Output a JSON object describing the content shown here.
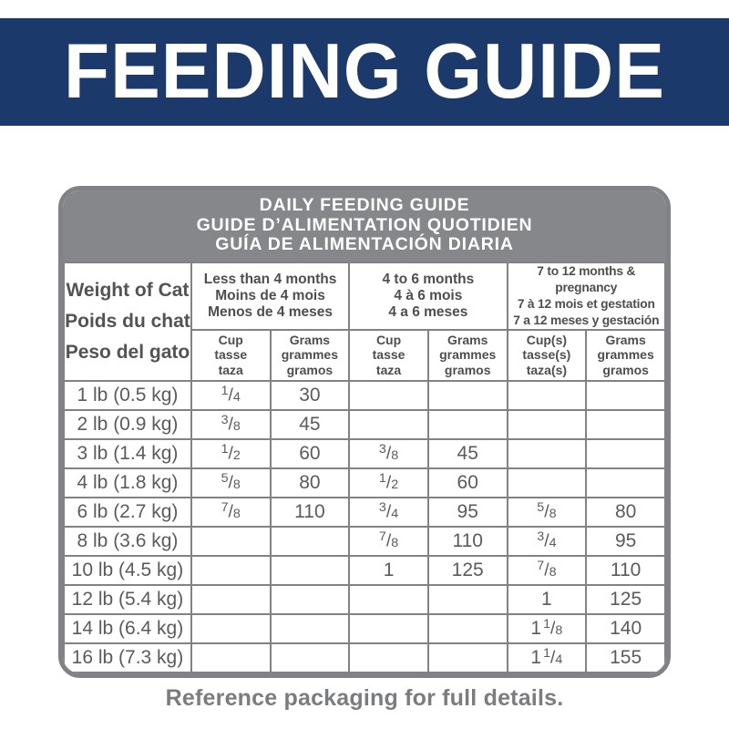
{
  "banner": {
    "title": "FEEDING GUIDE"
  },
  "table": {
    "title_lines": [
      "DAILY FEEDING GUIDE",
      "GUIDE D’ALIMENTATION QUOTIDIEN",
      "GUÍA DE ALIMENTACIÓN DIARIA"
    ],
    "weight_header_lines": [
      "Weight of Cat",
      "Poids du chat",
      "Peso del gato"
    ],
    "age_groups": [
      {
        "label_lines": [
          "Less than 4 months",
          "Moins de 4 mois",
          "Menos de 4 meses"
        ],
        "unit_headers": [
          [
            "Cup",
            "tasse",
            "taza"
          ],
          [
            "Grams",
            "grammes",
            "gramos"
          ]
        ]
      },
      {
        "label_lines": [
          "4 to 6 months",
          "4 à 6 mois",
          "4 a 6 meses"
        ],
        "unit_headers": [
          [
            "Cup",
            "tasse",
            "taza"
          ],
          [
            "Grams",
            "grammes",
            "gramos"
          ]
        ]
      },
      {
        "label_lines": [
          "7 to 12 months & pregnancy",
          "7 à 12 mois et gestation",
          "7 a 12 meses y gestación"
        ],
        "unit_headers": [
          [
            "Cup(s)",
            "tasse(s)",
            "taza(s)"
          ],
          [
            "Grams",
            "grammes",
            "gramos"
          ]
        ]
      }
    ],
    "rows": [
      {
        "weight": "1 lb (0.5 kg)",
        "values": [
          "1/4",
          "30",
          "",
          "",
          "",
          ""
        ]
      },
      {
        "weight": "2 lb (0.9 kg)",
        "values": [
          "3/8",
          "45",
          "",
          "",
          "",
          ""
        ]
      },
      {
        "weight": "3 lb (1.4 kg)",
        "values": [
          "1/2",
          "60",
          "3/8",
          "45",
          "",
          ""
        ]
      },
      {
        "weight": "4 lb (1.8 kg)",
        "values": [
          "5/8",
          "80",
          "1/2",
          "60",
          "",
          ""
        ]
      },
      {
        "weight": "6 lb (2.7 kg)",
        "values": [
          "7/8",
          "110",
          "3/4",
          "95",
          "5/8",
          "80"
        ]
      },
      {
        "weight": "8 lb (3.6 kg)",
        "values": [
          "",
          "",
          "7/8",
          "110",
          "3/4",
          "95"
        ]
      },
      {
        "weight": "10 lb (4.5 kg)",
        "values": [
          "",
          "",
          "1",
          "125",
          "7/8",
          "110"
        ]
      },
      {
        "weight": "12 lb (5.4 kg)",
        "values": [
          "",
          "",
          "",
          "",
          "1",
          "125"
        ]
      },
      {
        "weight": "14 lb (6.4 kg)",
        "values": [
          "",
          "",
          "",
          "",
          "1 1/8",
          "140"
        ]
      },
      {
        "weight": "16 lb (7.3 kg)",
        "values": [
          "",
          "",
          "",
          "",
          "1 1/4",
          "155"
        ]
      }
    ]
  },
  "footer": {
    "note": "Reference packaging for full details."
  },
  "colors": {
    "banner_navy": "#1b396b",
    "header_gray": "#85878a",
    "border_gray": "#808285",
    "text_gray": "#5a5b5d"
  }
}
